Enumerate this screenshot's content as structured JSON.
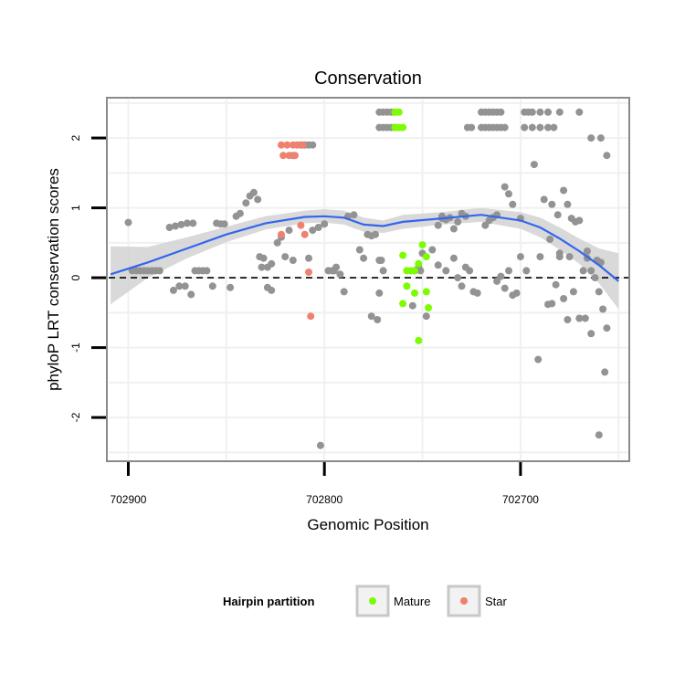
{
  "chart_data": {
    "type": "scatter",
    "title": "Conservation",
    "xlabel": "Genomic Position",
    "ylabel": "phyloP LRT conservation scores",
    "x_reversed": true,
    "xlim": [
      702910,
      702645
    ],
    "ylim": [
      -2.6,
      2.55
    ],
    "x_ticks": [
      702900,
      702800,
      702700
    ],
    "x_tick_labels": [
      "702900",
      "702800",
      "702700"
    ],
    "y_ticks": [
      -2,
      -1,
      0,
      1,
      2
    ],
    "y_tick_labels": [
      "-2",
      "-1",
      "0",
      "1",
      "2"
    ],
    "grid": true,
    "reference_line": {
      "y": 0,
      "style": "dashed"
    },
    "legend": {
      "title": "Hairpin partition",
      "position": "bottom",
      "entries": [
        {
          "label": "Mature",
          "color": "#7cfc00"
        },
        {
          "label": "Star",
          "color": "#f08070"
        }
      ]
    },
    "colors": {
      "Other": "#939393",
      "Mature": "#7cfc00",
      "Star": "#f08070",
      "smooth": "#3366ee",
      "band": "#d2d2d2"
    },
    "series": [
      {
        "name": "Other",
        "points": [
          [
            702900,
            0.79
          ],
          [
            702898,
            0.1
          ],
          [
            702896,
            0.1
          ],
          [
            702894,
            0.1
          ],
          [
            702892,
            0.1
          ],
          [
            702890,
            0.1
          ],
          [
            702888,
            0.1
          ],
          [
            702886,
            0.1
          ],
          [
            702884,
            0.1
          ],
          [
            702879,
            0.72
          ],
          [
            702876,
            0.74
          ],
          [
            702873,
            0.76
          ],
          [
            702870,
            0.78
          ],
          [
            702867,
            0.78
          ],
          [
            702877,
            -0.18
          ],
          [
            702874,
            -0.12
          ],
          [
            702871,
            -0.12
          ],
          [
            702868,
            -0.24
          ],
          [
            702866,
            0.1
          ],
          [
            702864,
            0.1
          ],
          [
            702862,
            0.1
          ],
          [
            702860,
            0.1
          ],
          [
            702857,
            -0.12
          ],
          [
            702855,
            0.78
          ],
          [
            702853,
            0.77
          ],
          [
            702851,
            0.77
          ],
          [
            702848,
            -0.14
          ],
          [
            702845,
            0.88
          ],
          [
            702843,
            0.92
          ],
          [
            702840,
            1.07
          ],
          [
            702838,
            1.17
          ],
          [
            702836,
            1.22
          ],
          [
            702834,
            1.12
          ],
          [
            702833,
            0.3
          ],
          [
            702831,
            0.28
          ],
          [
            702832,
            0.15
          ],
          [
            702829,
            0.15
          ],
          [
            702827,
            0.2
          ],
          [
            702829,
            -0.14
          ],
          [
            702827,
            -0.18
          ],
          [
            702824,
            0.5
          ],
          [
            702822,
            0.58
          ],
          [
            702820,
            0.3
          ],
          [
            702818,
            0.68
          ],
          [
            702816,
            0.25
          ],
          [
            702812,
            1.9
          ],
          [
            702810,
            1.9
          ],
          [
            702808,
            1.9
          ],
          [
            702806,
            1.9
          ],
          [
            702816,
            1.75
          ],
          [
            702808,
            0.28
          ],
          [
            702806,
            0.68
          ],
          [
            702803,
            0.72
          ],
          [
            702800,
            0.77
          ],
          [
            702798,
            0.1
          ],
          [
            702796,
            0.1
          ],
          [
            702794,
            0.15
          ],
          [
            702792,
            0.05
          ],
          [
            702790,
            -0.2
          ],
          [
            702795,
            0.1
          ],
          [
            702788,
            0.88
          ],
          [
            702785,
            0.9
          ],
          [
            702782,
            0.4
          ],
          [
            702780,
            0.28
          ],
          [
            702778,
            0.62
          ],
          [
            702776,
            -0.55
          ],
          [
            702773,
            -0.6
          ],
          [
            702776,
            0.6
          ],
          [
            702774,
            0.62
          ],
          [
            702772,
            0.25
          ],
          [
            702771,
            0.25
          ],
          [
            702770,
            0.1
          ],
          [
            702772,
            -0.22
          ],
          [
            702802,
            -2.4
          ],
          [
            702772,
            2.37
          ],
          [
            702770,
            2.37
          ],
          [
            702768,
            2.37
          ],
          [
            702766,
            2.37
          ],
          [
            702764,
            2.37
          ],
          [
            702772,
            2.15
          ],
          [
            702770,
            2.15
          ],
          [
            702768,
            2.15
          ],
          [
            702766,
            2.15
          ],
          [
            702764,
            2.15
          ],
          [
            702754,
            0.1
          ],
          [
            702752,
            0.15
          ],
          [
            702751,
            0.1
          ],
          [
            702755,
            -0.4
          ],
          [
            702748,
            -0.55
          ],
          [
            702750,
            0.35
          ],
          [
            702745,
            0.4
          ],
          [
            702742,
            0.75
          ],
          [
            702740,
            0.88
          ],
          [
            702738,
            0.83
          ],
          [
            702736,
            0.86
          ],
          [
            702734,
            0.7
          ],
          [
            702732,
            0.8
          ],
          [
            702730,
            0.92
          ],
          [
            702727,
            2.15
          ],
          [
            702725,
            2.15
          ],
          [
            702734,
            0.28
          ],
          [
            702732,
            0.0
          ],
          [
            702730,
            -0.12
          ],
          [
            702728,
            0.15
          ],
          [
            702726,
            0.1
          ],
          [
            702724,
            -0.2
          ],
          [
            702722,
            -0.22
          ],
          [
            702742,
            0.18
          ],
          [
            702738,
            0.1
          ],
          [
            702740,
            0.85
          ],
          [
            702728,
            0.88
          ],
          [
            702720,
            2.37
          ],
          [
            702718,
            2.37
          ],
          [
            702716,
            2.37
          ],
          [
            702714,
            2.37
          ],
          [
            702712,
            2.37
          ],
          [
            702710,
            2.37
          ],
          [
            702720,
            2.15
          ],
          [
            702718,
            2.15
          ],
          [
            702716,
            2.15
          ],
          [
            702714,
            2.15
          ],
          [
            702712,
            2.15
          ],
          [
            702710,
            2.15
          ],
          [
            702708,
            2.15
          ],
          [
            702718,
            0.75
          ],
          [
            702716,
            0.82
          ],
          [
            702714,
            0.86
          ],
          [
            702712,
            0.9
          ],
          [
            702708,
            1.3
          ],
          [
            702706,
            1.2
          ],
          [
            702704,
            1.05
          ],
          [
            702712,
            -0.05
          ],
          [
            702710,
            0.02
          ],
          [
            702708,
            -0.15
          ],
          [
            702706,
            0.1
          ],
          [
            702704,
            -0.25
          ],
          [
            702702,
            -0.22
          ],
          [
            702700,
            0.3
          ],
          [
            702698,
            2.37
          ],
          [
            702696,
            2.37
          ],
          [
            702694,
            2.37
          ],
          [
            702690,
            2.37
          ],
          [
            702686,
            2.37
          ],
          [
            702680,
            2.37
          ],
          [
            702698,
            2.15
          ],
          [
            702694,
            2.15
          ],
          [
            702690,
            2.15
          ],
          [
            702686,
            2.15
          ],
          [
            702683,
            2.15
          ],
          [
            702693,
            1.62
          ],
          [
            702688,
            1.12
          ],
          [
            702684,
            1.05
          ],
          [
            702681,
            0.9
          ],
          [
            702678,
            1.25
          ],
          [
            702676,
            1.05
          ],
          [
            702674,
            0.85
          ],
          [
            702672,
            0.8
          ],
          [
            702670,
            0.82
          ],
          [
            702691,
            -1.17
          ],
          [
            702686,
            -0.38
          ],
          [
            702684,
            -0.37
          ],
          [
            702682,
            -0.1
          ],
          [
            702680,
            0.3
          ],
          [
            702678,
            -0.3
          ],
          [
            702676,
            -0.6
          ],
          [
            702673,
            -0.2
          ],
          [
            702670,
            -0.58
          ],
          [
            702667,
            -0.58
          ],
          [
            702668,
            0.1
          ],
          [
            702666,
            0.38
          ],
          [
            702664,
            0.1
          ],
          [
            702662,
            0.0
          ],
          [
            702660,
            -0.2
          ],
          [
            702670,
            2.37
          ],
          [
            702664,
            2.0
          ],
          [
            702659,
            2.0
          ],
          [
            702656,
            1.75
          ],
          [
            702661,
            0.25
          ],
          [
            702659,
            0.22
          ],
          [
            702658,
            -0.45
          ],
          [
            702656,
            -0.72
          ],
          [
            702657,
            -1.35
          ],
          [
            702660,
            -2.25
          ],
          [
            702664,
            -0.8
          ],
          [
            702690,
            0.3
          ],
          [
            702685,
            0.55
          ],
          [
            702680,
            0.35
          ],
          [
            702675,
            0.3
          ],
          [
            702666,
            0.28
          ],
          [
            702700,
            0.85
          ],
          [
            702697,
            0.1
          ]
        ]
      },
      {
        "name": "Mature",
        "points": [
          [
            702764,
            2.37
          ],
          [
            702762,
            2.37
          ],
          [
            702764,
            2.15
          ],
          [
            702762,
            2.15
          ],
          [
            702760,
            2.15
          ],
          [
            702760,
            0.32
          ],
          [
            702758,
            0.1
          ],
          [
            702756,
            0.1
          ],
          [
            702754,
            0.1
          ],
          [
            702752,
            0.2
          ],
          [
            702750,
            0.47
          ],
          [
            702748,
            0.3
          ],
          [
            702758,
            -0.12
          ],
          [
            702760,
            -0.37
          ],
          [
            702754,
            -0.22
          ],
          [
            702748,
            -0.2
          ],
          [
            702747,
            -0.43
          ],
          [
            702752,
            -0.9
          ]
        ]
      },
      {
        "name": "Star",
        "points": [
          [
            702822,
            1.9
          ],
          [
            702819,
            1.9
          ],
          [
            702816,
            1.9
          ],
          [
            702814,
            1.9
          ],
          [
            702811,
            1.9
          ],
          [
            702821,
            1.75
          ],
          [
            702818,
            1.75
          ],
          [
            702815,
            1.75
          ],
          [
            702822,
            0.62
          ],
          [
            702812,
            0.75
          ],
          [
            702810,
            0.62
          ],
          [
            702808,
            0.08
          ],
          [
            702807,
            -0.55
          ]
        ]
      }
    ],
    "smooth_line": {
      "x": [
        702909,
        702890,
        702870,
        702850,
        702830,
        702810,
        702800,
        702790,
        702780,
        702770,
        702760,
        702740,
        702720,
        702700,
        702690,
        702680,
        702670,
        702660,
        702650
      ],
      "y": [
        0.05,
        0.22,
        0.42,
        0.62,
        0.78,
        0.87,
        0.88,
        0.86,
        0.76,
        0.74,
        0.8,
        0.85,
        0.9,
        0.82,
        0.72,
        0.56,
        0.38,
        0.18,
        -0.05
      ],
      "upper": [
        0.45,
        0.44,
        0.58,
        0.73,
        0.88,
        0.96,
        0.98,
        0.96,
        0.86,
        0.82,
        0.9,
        0.94,
        1.0,
        0.94,
        0.86,
        0.72,
        0.56,
        0.42,
        0.35
      ],
      "lower": [
        -0.38,
        0.0,
        0.28,
        0.51,
        0.69,
        0.78,
        0.79,
        0.76,
        0.66,
        0.64,
        0.7,
        0.76,
        0.8,
        0.7,
        0.58,
        0.4,
        0.2,
        -0.08,
        -0.45
      ]
    }
  }
}
